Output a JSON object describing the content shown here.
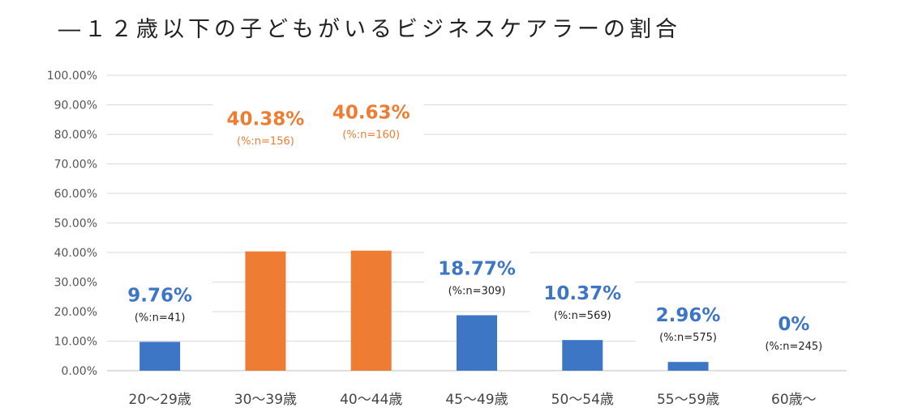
{
  "chart_data": {
    "type": "bar",
    "title": "―１２歳以下の子どもがいるビジネスケアラーの割合",
    "xlabel": "",
    "ylabel": "",
    "ylim": [
      0,
      100
    ],
    "grid": true,
    "legend": "none",
    "yticks": [
      "0.00%",
      "10.00%",
      "20.00%",
      "30.00%",
      "40.00%",
      "50.00%",
      "60.00%",
      "70.00%",
      "80.00%",
      "90.00%",
      "100.00%"
    ],
    "categories": [
      "20〜29歳",
      "30〜39歳",
      "40〜44歳",
      "45〜49歳",
      "50〜54歳",
      "55〜59歳",
      "60歳〜"
    ],
    "values": [
      9.76,
      40.38,
      40.63,
      18.77,
      10.37,
      2.96,
      0
    ],
    "value_labels": [
      "9.76%",
      "40.38%",
      "40.63%",
      "18.77%",
      "10.37%",
      "2.96%",
      "0%"
    ],
    "n_labels": [
      "(%:n=41)",
      "(%:n=156)",
      "(%:n=160)",
      "(%:n=309)",
      "(%:n=569)",
      "(%:n=575)",
      "(%:n=245)"
    ],
    "bar_colors": [
      "#3D76C4",
      "#EE7D33",
      "#EE7D33",
      "#3D76C4",
      "#3D76C4",
      "#3D76C4",
      "#3D76C4"
    ],
    "label_colors": [
      "#3D76C4",
      "#EE7D33",
      "#EE7D33",
      "#3D76C4",
      "#3D76C4",
      "#3D76C4",
      "#3D76C4"
    ],
    "n_label_colors": [
      "#222222",
      "#EE7D33",
      "#EE7D33",
      "#222222",
      "#222222",
      "#222222",
      "#222222"
    ],
    "grid_color": "#D9D9D9",
    "axis_color": "#BFBFBF"
  }
}
